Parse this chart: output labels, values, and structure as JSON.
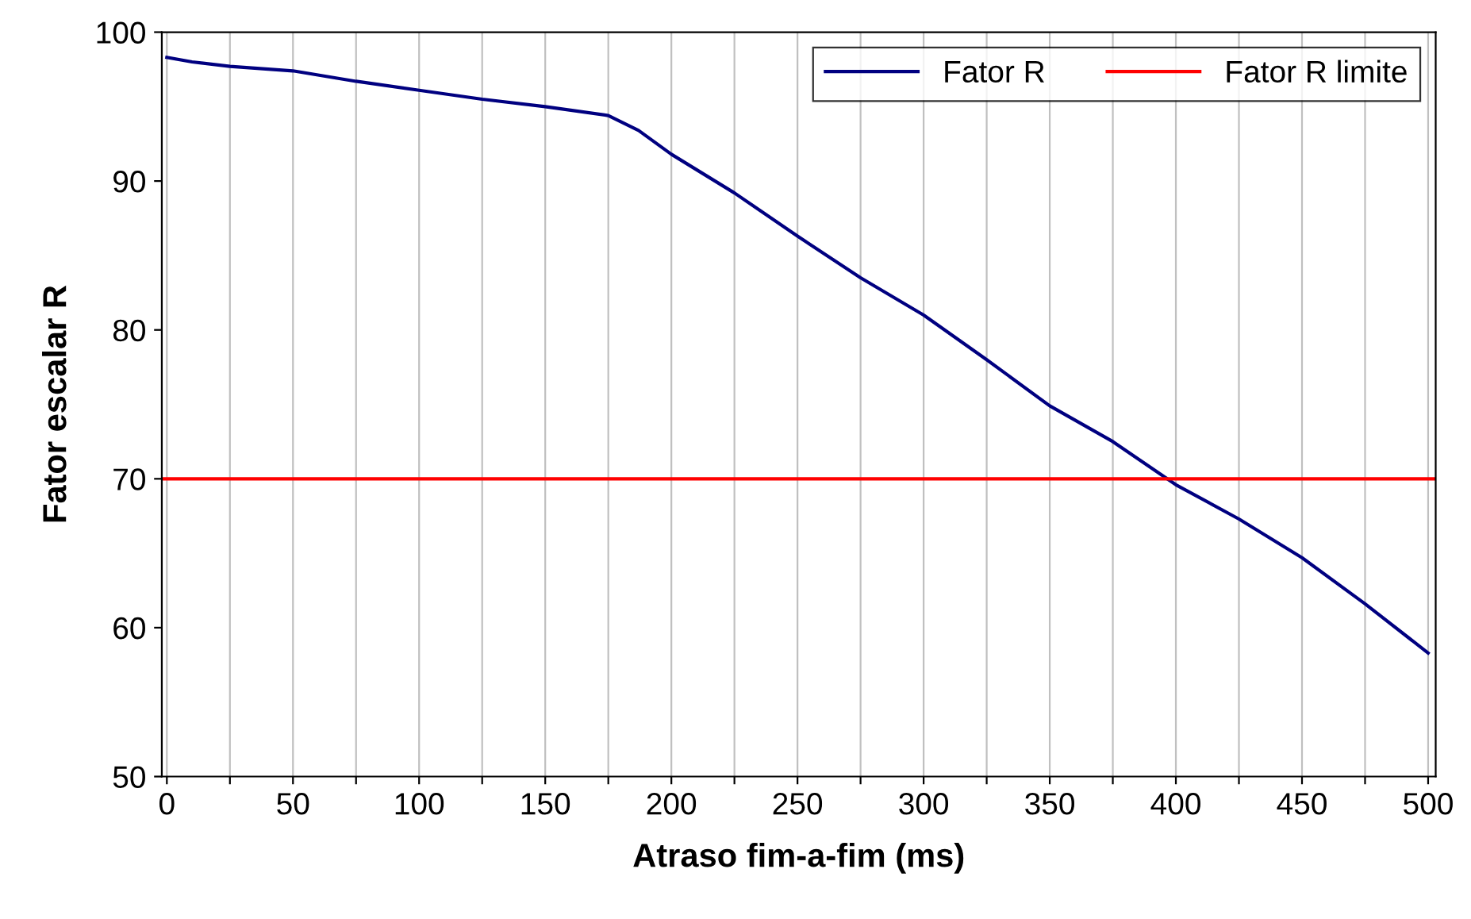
{
  "chart_data": {
    "type": "line",
    "xlabel": "Atraso fim-a-fim (ms)",
    "ylabel": "Fator escalar R",
    "xlim": [
      -2,
      503
    ],
    "ylim": [
      50,
      100
    ],
    "xticks": [
      0,
      {
        "value": 25,
        "label": null
      },
      50,
      {
        "value": 75,
        "label": null
      },
      100,
      {
        "value": 125,
        "label": null
      },
      150,
      {
        "value": 175,
        "label": null
      },
      200,
      {
        "value": 225,
        "label": null
      },
      250,
      {
        "value": 275,
        "label": null
      },
      300,
      {
        "value": 325,
        "label": null
      },
      350,
      {
        "value": 375,
        "label": null
      },
      400,
      {
        "value": 425,
        "label": null
      },
      450,
      {
        "value": 475,
        "label": null
      },
      500
    ],
    "yticks": [
      50,
      60,
      70,
      80,
      90,
      100
    ],
    "grid": "x",
    "legend": "top right",
    "marker": "none",
    "line_style": "solid",
    "series": [
      {
        "name": "Fator R",
        "color": "#000080",
        "x": [
          0,
          10,
          25,
          50,
          75,
          100,
          125,
          150,
          175,
          187,
          200,
          225,
          250,
          275,
          300,
          325,
          350,
          375,
          400,
          425,
          450,
          475,
          500
        ],
        "values": [
          98.3,
          98.0,
          97.7,
          97.4,
          96.7,
          96.1,
          95.5,
          95.0,
          94.4,
          93.4,
          91.8,
          89.2,
          86.3,
          83.5,
          81.0,
          78.0,
          74.9,
          72.5,
          69.6,
          67.3,
          64.7,
          61.6,
          58.3
        ]
      },
      {
        "name": "Fator R limite",
        "color": "#ff0000",
        "x": [
          -2,
          503
        ],
        "values": [
          70,
          70
        ]
      }
    ]
  }
}
